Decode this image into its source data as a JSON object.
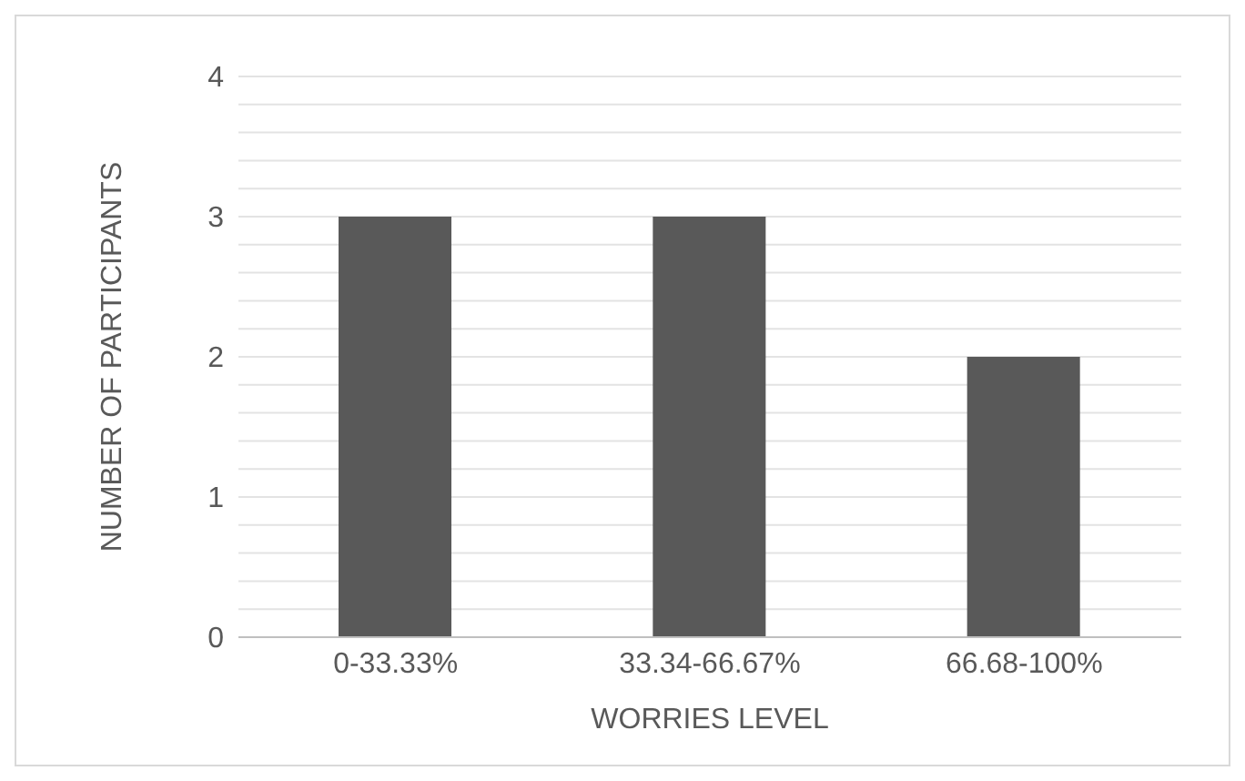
{
  "chart_data": {
    "type": "bar",
    "xlabel": "WORRIES LEVEL",
    "ylabel": "NUMBER OF PARTICIPANTS",
    "categories": [
      "0-33.33%",
      "33.34-66.67%",
      "66.68-100%"
    ],
    "values": [
      3,
      3,
      2
    ],
    "color": "#595959",
    "ylim": [
      0,
      4
    ],
    "yticks": [
      0,
      {
        "value": 0.2,
        "label": null
      },
      {
        "value": 0.4,
        "label": null
      },
      {
        "value": 0.6,
        "label": null
      },
      {
        "value": 0.8,
        "label": null
      },
      1,
      {
        "value": 1.2,
        "label": null
      },
      {
        "value": 1.4,
        "label": null
      },
      {
        "value": 1.6,
        "label": null
      },
      {
        "value": 1.8,
        "label": null
      },
      2,
      {
        "value": 2.2,
        "label": null
      },
      {
        "value": 2.4,
        "label": null
      },
      {
        "value": 2.6,
        "label": null
      },
      {
        "value": 2.8,
        "label": null
      },
      3,
      {
        "value": 3.2,
        "label": null
      },
      {
        "value": 3.4,
        "label": null
      },
      {
        "value": 3.6,
        "label": null
      },
      {
        "value": 3.8,
        "label": null
      },
      4
    ],
    "grid": true,
    "legend": false
  }
}
